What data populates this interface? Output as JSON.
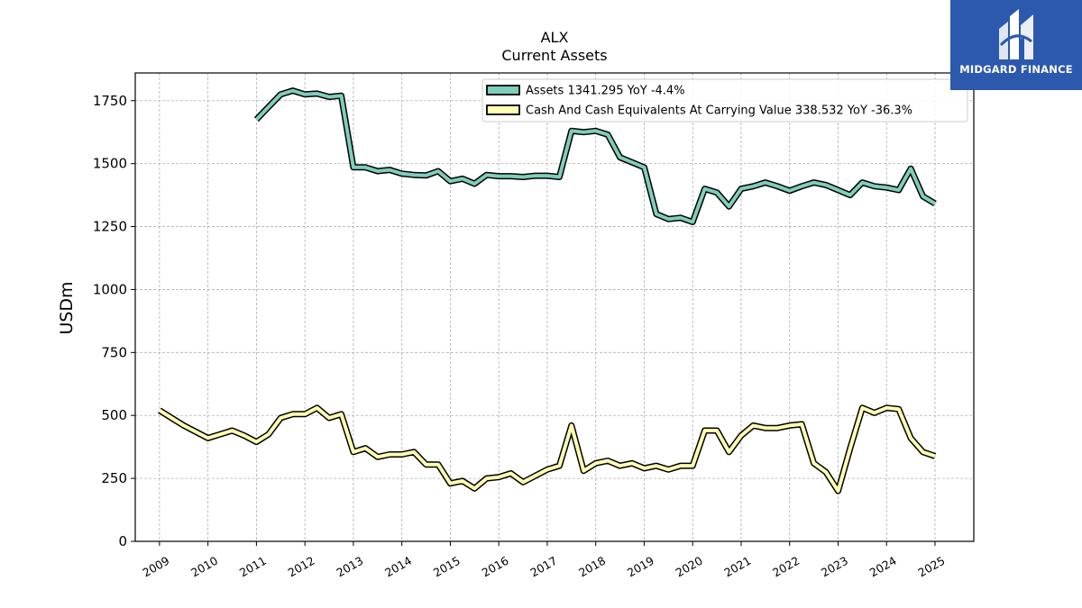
{
  "logo": {
    "text": "MIDGARD FINANCE",
    "background": "#2c58ad"
  },
  "chart_data": {
    "type": "line",
    "title": "ALX",
    "subtitle": "Current  Assets",
    "xlabel": "",
    "ylabel": "USDm",
    "ylim": [
      0,
      1860
    ],
    "xlim": [
      2008.5,
      2025.8
    ],
    "yticks": [
      0,
      250,
      500,
      750,
      1000,
      1250,
      1500,
      1750
    ],
    "xticks": [
      "2009",
      "2010",
      "2011",
      "2012",
      "2013",
      "2014",
      "2015",
      "2016",
      "2017",
      "2018",
      "2019",
      "2020",
      "2021",
      "2022",
      "2023",
      "2024",
      "2025"
    ],
    "grid": true,
    "legend_position": "top-right",
    "series": [
      {
        "name": "Assets  1341.295 YoY -4.4%",
        "color": "#7fcdbb",
        "x": [
          2011.0,
          2011.25,
          2011.5,
          2011.75,
          2012.0,
          2012.25,
          2012.5,
          2012.75,
          2013.0,
          2013.25,
          2013.5,
          2013.75,
          2014.0,
          2014.25,
          2014.5,
          2014.75,
          2015.0,
          2015.25,
          2015.5,
          2015.75,
          2016.0,
          2016.25,
          2016.5,
          2016.75,
          2017.0,
          2017.25,
          2017.5,
          2017.75,
          2018.0,
          2018.25,
          2018.5,
          2018.75,
          2019.0,
          2019.25,
          2019.5,
          2019.75,
          2020.0,
          2020.25,
          2020.5,
          2020.75,
          2021.0,
          2021.25,
          2021.5,
          2021.75,
          2022.0,
          2022.25,
          2022.5,
          2022.75,
          2023.0,
          2023.25,
          2023.5,
          2023.75,
          2024.0,
          2024.25,
          2024.5,
          2024.75,
          2025.0
        ],
        "y": [
          1675,
          1725,
          1775,
          1790,
          1775,
          1778,
          1765,
          1770,
          1485,
          1485,
          1470,
          1475,
          1460,
          1455,
          1453,
          1470,
          1430,
          1440,
          1420,
          1455,
          1450,
          1450,
          1447,
          1452,
          1452,
          1447,
          1630,
          1625,
          1630,
          1615,
          1525,
          1505,
          1485,
          1300,
          1280,
          1285,
          1268,
          1400,
          1385,
          1330,
          1400,
          1410,
          1425,
          1410,
          1392,
          1410,
          1425,
          1415,
          1395,
          1375,
          1425,
          1410,
          1405,
          1395,
          1480,
          1370,
          1341.295
        ]
      },
      {
        "name": "Cash And Cash Equivalents At Carrying Value  338.532 YoY -36.3%",
        "color": "#ffffb3",
        "x": [
          2009.0,
          2009.25,
          2009.5,
          2009.75,
          2010.0,
          2010.25,
          2010.5,
          2010.75,
          2011.0,
          2011.25,
          2011.5,
          2011.75,
          2012.0,
          2012.25,
          2012.5,
          2012.75,
          2013.0,
          2013.25,
          2013.5,
          2013.75,
          2014.0,
          2014.25,
          2014.5,
          2014.75,
          2015.0,
          2015.25,
          2015.5,
          2015.75,
          2016.0,
          2016.25,
          2016.5,
          2016.75,
          2017.0,
          2017.25,
          2017.5,
          2017.75,
          2018.0,
          2018.25,
          2018.5,
          2018.75,
          2019.0,
          2019.25,
          2019.5,
          2019.75,
          2020.0,
          2020.25,
          2020.5,
          2020.75,
          2021.0,
          2021.25,
          2021.5,
          2021.75,
          2022.0,
          2022.25,
          2022.5,
          2022.75,
          2023.0,
          2023.25,
          2023.5,
          2023.75,
          2024.0,
          2024.25,
          2024.5,
          2024.75,
          2025.0
        ],
        "y": [
          520,
          490,
          460,
          435,
          410,
          425,
          440,
          420,
          395,
          425,
          490,
          505,
          505,
          530,
          490,
          505,
          355,
          370,
          335,
          345,
          345,
          355,
          305,
          305,
          230,
          240,
          210,
          250,
          255,
          270,
          235,
          260,
          285,
          300,
          460,
          280,
          310,
          320,
          300,
          310,
          290,
          300,
          285,
          300,
          300,
          440,
          440,
          355,
          420,
          460,
          450,
          450,
          460,
          465,
          310,
          275,
          200,
          370,
          530,
          510,
          530,
          525,
          410,
          355,
          338.532
        ]
      }
    ]
  }
}
